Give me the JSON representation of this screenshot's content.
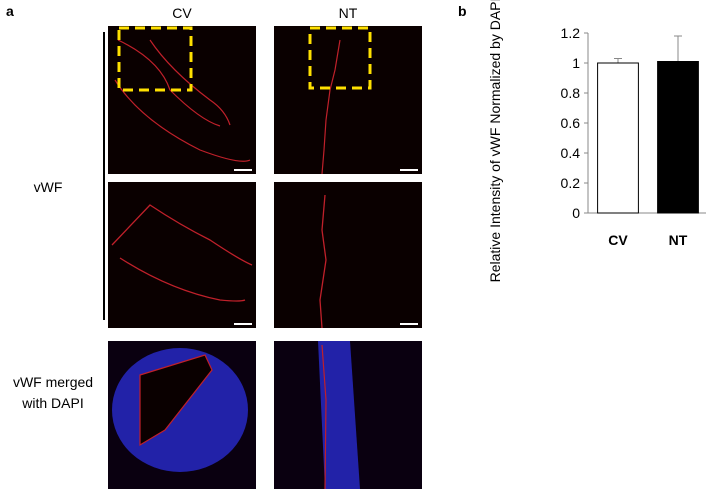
{
  "panel_a": {
    "label": "a",
    "columns": [
      "CV",
      "NT"
    ],
    "rows": [
      "vWF",
      "vWF merged with DAPI"
    ]
  },
  "chart_data": {
    "type": "bar",
    "panel_label": "b",
    "y_label": "Relative Intensity of vWF Normalized by DAPI",
    "categories": [
      "CV",
      "NT"
    ],
    "values": [
      1.0,
      1.01
    ],
    "errors": [
      0.03,
      0.17
    ],
    "colors": [
      "#ffffff",
      "#000000"
    ],
    "ylim": [
      0,
      1.2
    ],
    "yticks": [
      0,
      0.2,
      0.4,
      0.6,
      0.8,
      1,
      1.2
    ]
  }
}
